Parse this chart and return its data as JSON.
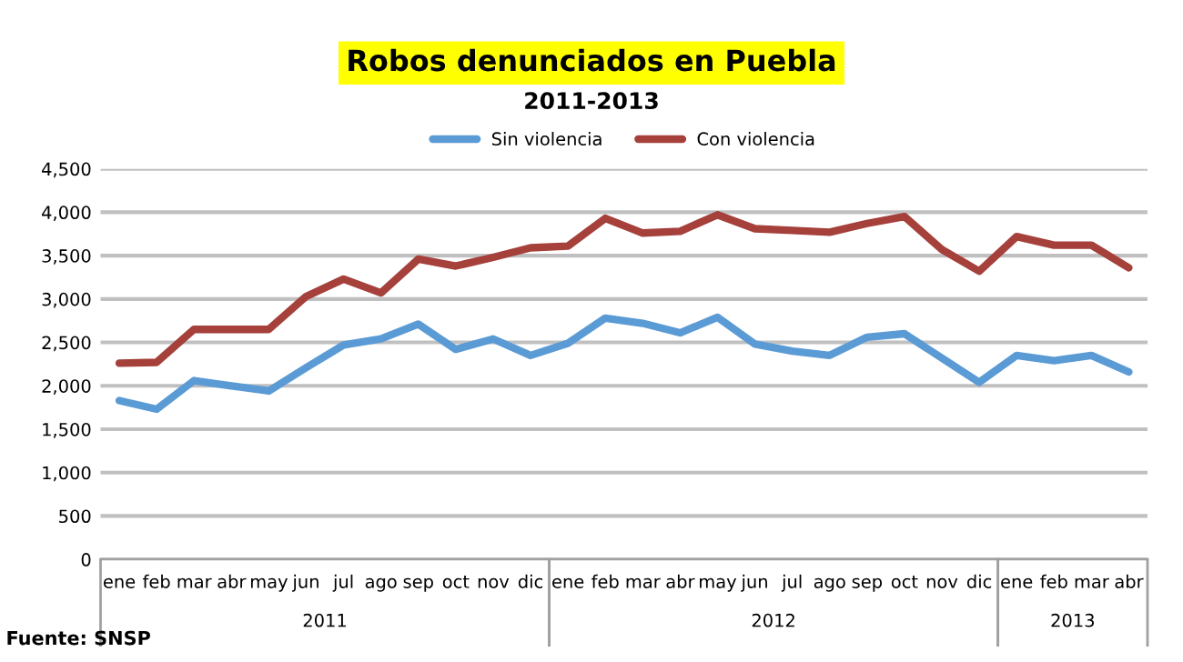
{
  "chart_data": {
    "type": "line",
    "title": "Robos denunciados en Puebla",
    "subtitle": "2011-2013",
    "categories": [
      "ene",
      "feb",
      "mar",
      "abr",
      "may",
      "jun",
      "jul",
      "ago",
      "sep",
      "oct",
      "nov",
      "dic",
      "ene",
      "feb",
      "mar",
      "abr",
      "may",
      "jun",
      "jul",
      "ago",
      "sep",
      "oct",
      "nov",
      "dic",
      "ene",
      "feb",
      "mar",
      "abr"
    ],
    "series": [
      {
        "name": "Sin violencia",
        "color": "#5b9bd5",
        "values": [
          1830,
          1730,
          2060,
          2000,
          1940,
          2210,
          2470,
          2540,
          2710,
          2420,
          2540,
          2350,
          2490,
          2780,
          2720,
          2610,
          2790,
          2480,
          2400,
          2350,
          2560,
          2600,
          2320,
          2040,
          2350,
          2290,
          2350,
          2160
        ]
      },
      {
        "name": "Con violencia",
        "color": "#a5403b",
        "values": [
          2260,
          2270,
          2650,
          2650,
          2650,
          3030,
          3230,
          3070,
          3460,
          3380,
          3480,
          3590,
          3610,
          3930,
          3760,
          3780,
          3970,
          3810,
          3790,
          3770,
          3870,
          3950,
          3570,
          3320,
          3720,
          3620,
          3620,
          3360
        ]
      }
    ],
    "ylim": [
      0,
      4500
    ],
    "yticks": [
      {
        "value": 0,
        "label": "0"
      },
      {
        "value": 500,
        "label": "500"
      },
      {
        "value": 1000,
        "label": "1,000"
      },
      {
        "value": 1500,
        "label": "1,500"
      },
      {
        "value": 2000,
        "label": "2,000"
      },
      {
        "value": 2500,
        "label": "2,500"
      },
      {
        "value": 3000,
        "label": "3,000"
      },
      {
        "value": 3500,
        "label": "3,500"
      },
      {
        "value": 4000,
        "label": "4,000"
      },
      {
        "value": 4500,
        "label": "4,500"
      }
    ],
    "grid": "y",
    "legend": "top",
    "marker": "none",
    "line_style": "solid",
    "annotations": [
      "2011",
      "2012",
      "2013",
      "Fuente: SNSP"
    ]
  }
}
